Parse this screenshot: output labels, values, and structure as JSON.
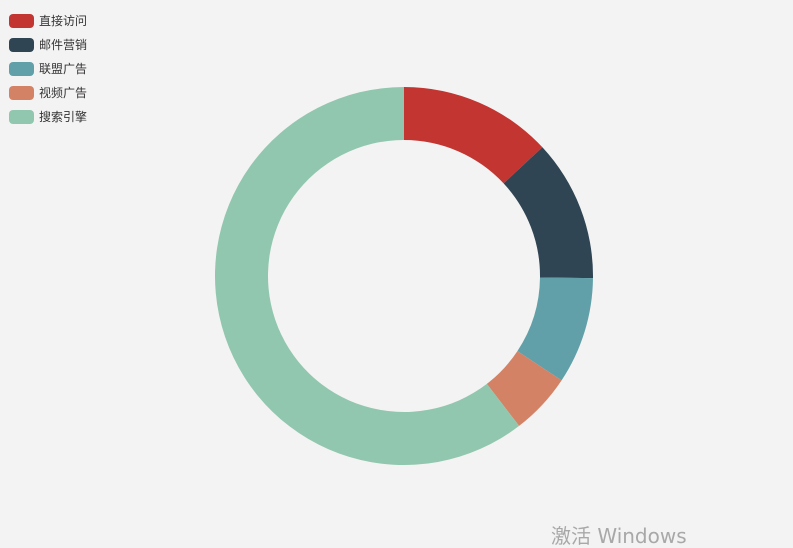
{
  "chart_data": {
    "type": "pie",
    "categories": [
      "直接访问",
      "邮件营销",
      "联盟广告",
      "视频广告",
      "搜索引擎"
    ],
    "values": [
      335,
      310,
      234,
      135,
      1548
    ],
    "colors": [
      "#c23531",
      "#2f4554",
      "#61a0a8",
      "#d48265",
      "#91c7ae"
    ],
    "donut": true,
    "legend_position": "top-left"
  },
  "watermark": {
    "text": "激活 Windows"
  }
}
